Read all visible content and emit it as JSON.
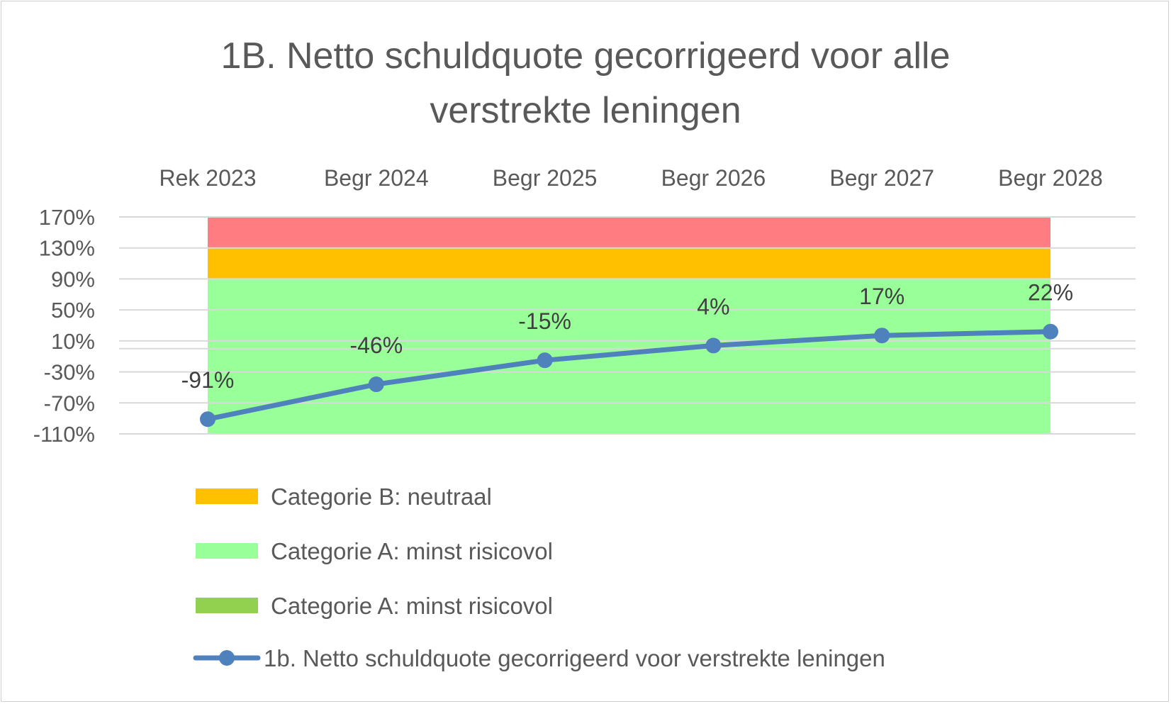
{
  "chart_data": {
    "type": "line",
    "title": [
      "1B. Netto schuldquote gecorrigeerd voor alle",
      "verstrekte leningen"
    ],
    "categories": [
      "Rek 2023",
      "Begr 2024",
      "Begr 2025",
      "Begr 2026",
      "Begr 2027",
      "Begr 2028"
    ],
    "y_ticks": [
      "170%",
      "130%",
      "90%",
      "50%",
      "10%",
      "-30%",
      "-70%",
      "-110%"
    ],
    "ylim": [
      -110,
      170
    ],
    "y_unit": "%",
    "x_axis_position": "top",
    "grid": true,
    "legend_position": "bottom",
    "bands": [
      {
        "name": "",
        "from": 130,
        "to": 170,
        "color": "#FF7C80"
      },
      {
        "name": "Categorie B: neutraal",
        "from": 90,
        "to": 130,
        "color": "#FFC000"
      },
      {
        "name": "Categorie A: minst risicovol",
        "from": -110,
        "to": 90,
        "color": "#99FF99"
      },
      {
        "name": "Categorie A: minst risicovol",
        "color": "#92D050",
        "legend_only": true
      }
    ],
    "series": [
      {
        "name": "1b. Netto schuldquote gecorrigeerd voor verstrekte leningen",
        "values": [
          -91,
          -46,
          -15,
          4,
          17,
          22
        ],
        "labels": [
          "-91%",
          "-46%",
          "-15%",
          "4%",
          "17%",
          "22%"
        ],
        "color": "#4F81BD"
      }
    ]
  }
}
